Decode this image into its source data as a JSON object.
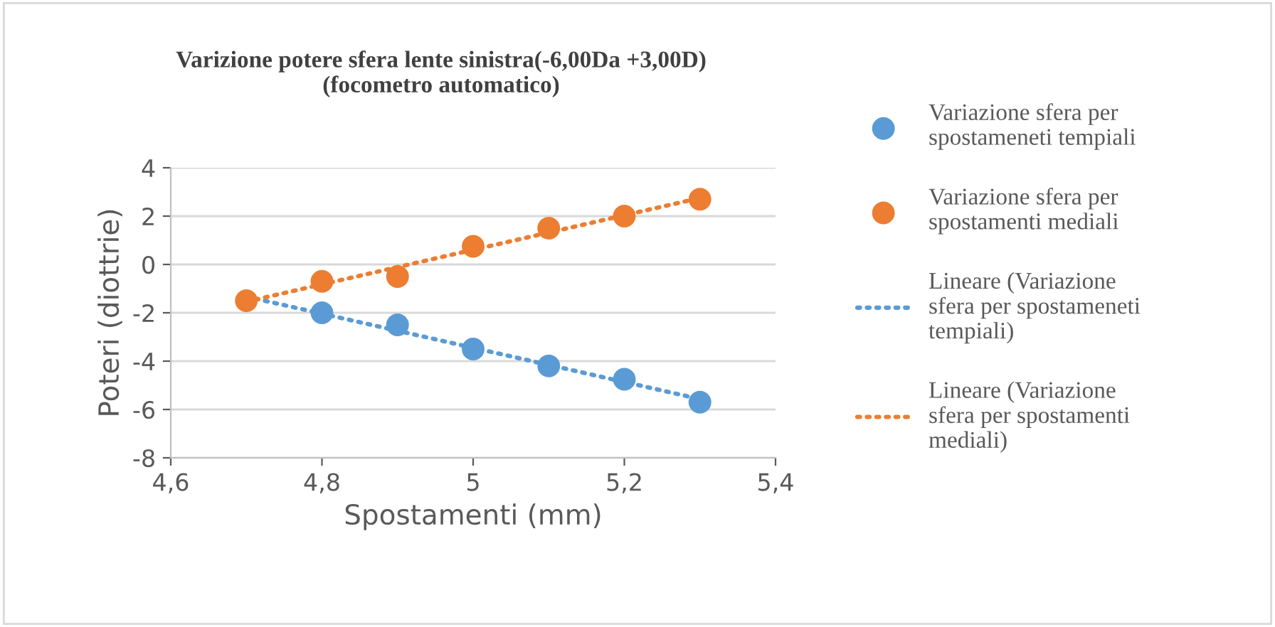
{
  "chart_data": {
    "type": "scatter",
    "title": "Varizione potere sfera lente sinistra(-6,00Da +3,00D)\n(focometro automatico)",
    "xlabel": "Spostamenti (mm)",
    "ylabel": "Poteri (diottrie)",
    "xlim": [
      4.6,
      5.4
    ],
    "xticks": [
      {
        "value": 4.6,
        "label": "4,6"
      },
      {
        "value": 4.8,
        "label": "4,8"
      },
      {
        "value": 5,
        "label": "5"
      },
      {
        "value": 5.2,
        "label": "5,2"
      },
      {
        "value": 5.4,
        "label": "5,4"
      }
    ],
    "ylim": [
      -8,
      4
    ],
    "yticks": [
      -8,
      -6,
      -4,
      -2,
      0,
      2,
      4
    ],
    "grid": "y",
    "legend": "right",
    "series": [
      {
        "name": "Variazione sfera per spostameneti tempiali",
        "marker": "circle",
        "color": "#5b9bd5",
        "x": [
          4.8,
          4.9,
          5.0,
          5.1,
          5.2,
          5.3
        ],
        "values": [
          -2.0,
          -2.5,
          -3.5,
          -4.2,
          -4.75,
          -5.7
        ]
      },
      {
        "name": "Variazione sfera per spostamenti mediali",
        "marker": "circle",
        "color": "#ed7d31",
        "x": [
          4.7,
          4.8,
          4.9,
          5.0,
          5.1,
          5.2,
          5.3
        ],
        "values": [
          -1.5,
          -0.7,
          -0.5,
          0.75,
          1.5,
          2.0,
          2.7
        ]
      },
      {
        "name": "Lineare (Variazione sfera per spostameneti tempiali)",
        "type": "line",
        "line_style": "dotted",
        "marker": "none",
        "color": "#5b9bd5",
        "x": [
          4.7,
          5.3
        ],
        "values": [
          -1.33,
          -5.57
        ]
      },
      {
        "name": "Lineare (Variazione sfera per spostamenti mediali)",
        "type": "line",
        "line_style": "dotted",
        "marker": "none",
        "color": "#ed7d31",
        "x": [
          4.7,
          5.3
        ],
        "values": [
          -1.54,
          2.75
        ]
      }
    ]
  }
}
